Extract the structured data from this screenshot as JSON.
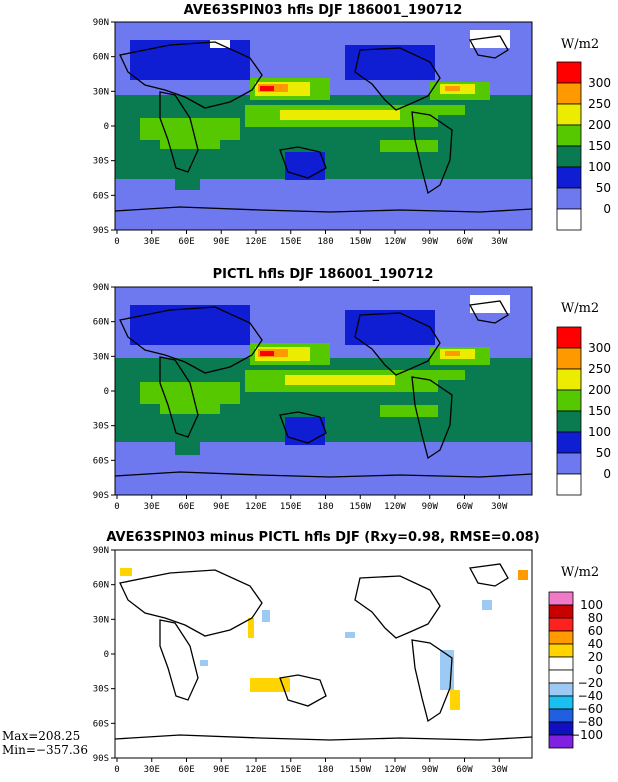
{
  "panels": [
    {
      "title": "AVE63SPIN03 hfls DJF 186001_190712",
      "units": "W/m2",
      "colorbar": {
        "labels": [
          "300",
          "250",
          "200",
          "150",
          "100",
          "50",
          "0"
        ],
        "colors": [
          "#ff0000",
          "#ff9900",
          "#ecec00",
          "#55c800",
          "#0a7a50",
          "#0f1ed2",
          "#6f79ef",
          "#ffffff"
        ]
      }
    },
    {
      "title": "PICTL hfls DJF 186001_190712",
      "units": "W/m2",
      "colorbar": {
        "labels": [
          "300",
          "250",
          "200",
          "150",
          "100",
          "50",
          "0"
        ],
        "colors": [
          "#ff0000",
          "#ff9900",
          "#ecec00",
          "#55c800",
          "#0a7a50",
          "#0f1ed2",
          "#6f79ef",
          "#ffffff"
        ]
      }
    },
    {
      "title": "AVE63SPIN03 minus PICTL hfls DJF (Rxy=0.98, RMSE=0.08)",
      "units": "W/m2",
      "colorbar": {
        "labels": [
          "100",
          "80",
          "60",
          "40",
          "20",
          "0",
          "−20",
          "−40",
          "−60",
          "−80",
          "−100"
        ],
        "colors": [
          "#f07ac8",
          "#c80000",
          "#ff2020",
          "#ff9a00",
          "#ffd400",
          "#ffffff",
          "#ffffff",
          "#9ccaf5",
          "#1ac0f0",
          "#2060e0",
          "#1010c0",
          "#8020e0"
        ]
      },
      "stats": {
        "max": "Max=208.25",
        "min": "Min=−357.36"
      }
    }
  ],
  "lat_labels": [
    "90N",
    "60N",
    "30N",
    "0",
    "30S",
    "60S",
    "90S"
  ],
  "lon_labels": [
    "0",
    "30E",
    "60E",
    "90E",
    "120E",
    "150E",
    "180",
    "150W",
    "120W",
    "90W",
    "60W",
    "30W"
  ]
}
